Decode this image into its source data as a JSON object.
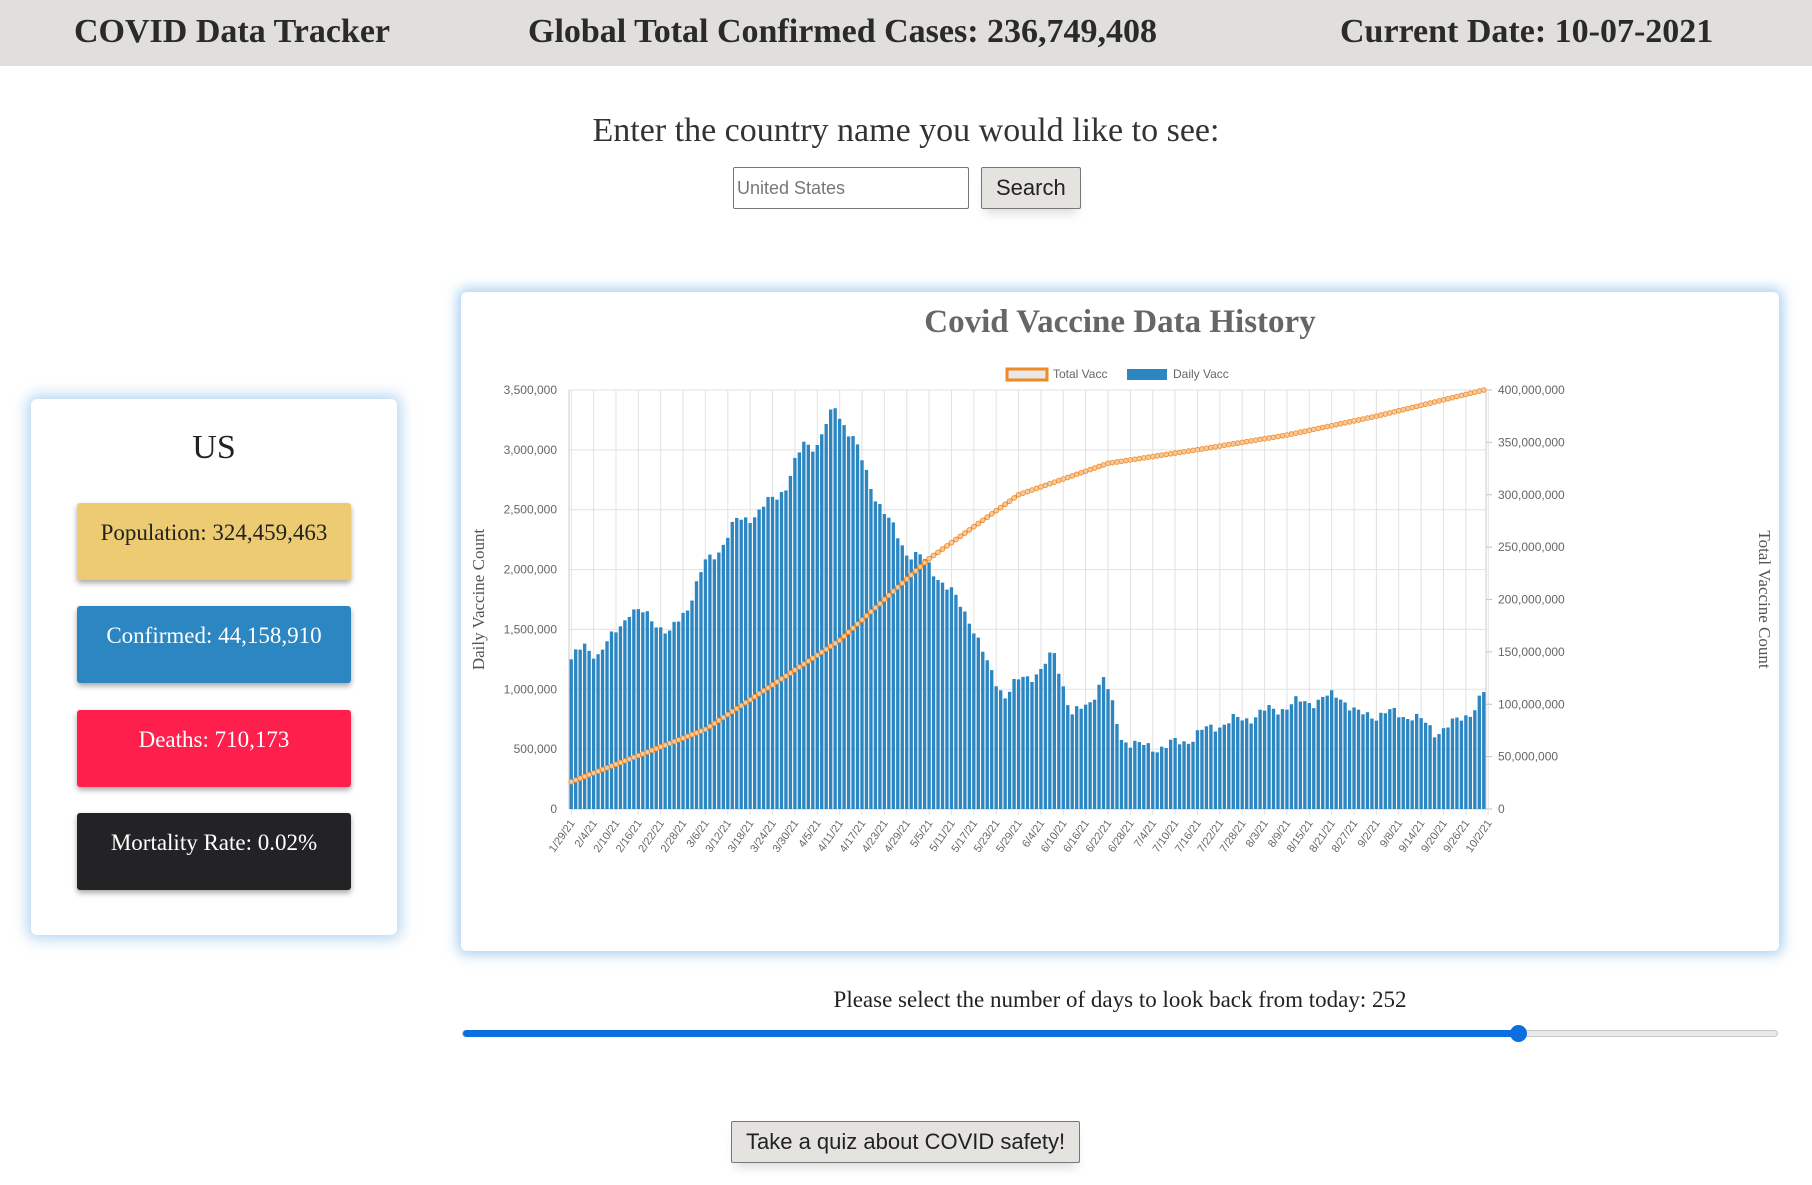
{
  "header": {
    "app_title": "COVID Data Tracker",
    "global_cases": "Global Total Confirmed Cases: 236,749,408",
    "current_date": "Current Date: 10-07-2021"
  },
  "search": {
    "prompt": "Enter the country name you would like to see:",
    "placeholder": "United States",
    "button_label": "Search"
  },
  "country": {
    "name": "US",
    "population": "Population: 324,459,463",
    "confirmed": "Confirmed: 44,158,910",
    "deaths": "Deaths: 710,173",
    "mortality": "Mortality Rate: 0.02%"
  },
  "colors": {
    "population": "#eccb72",
    "confirmed": "#2c86c2",
    "deaths": "#ff1f4c",
    "mortality": "#232225",
    "bar": "#2c86c2",
    "line": "#f08a24",
    "slider": "#0b6fe0"
  },
  "slider": {
    "label": "Please select the number of days to look back from today: 252",
    "value": 252,
    "fraction": 0.803
  },
  "quiz": {
    "button_label": "Take a quiz about COVID safety!"
  },
  "chart_data": {
    "type": "bar",
    "title": "Covid Vaccine Data History",
    "ylabel": "Daily Vaccine Count",
    "y2label": "Total Vaccine Count",
    "legend": [
      "Total Vacc",
      "Daily Vacc"
    ],
    "legend_position": "top",
    "grid": true,
    "ylim": [
      0,
      3500000
    ],
    "y2lim": [
      0,
      400000000
    ],
    "yticks": [
      "3,500,000",
      "3,000,000",
      "2,500,000",
      "2,000,000",
      "1,500,000",
      "1,000,000",
      "500,000",
      "0"
    ],
    "y2ticks": [
      "400,000,000",
      "350,000,000",
      "300,000,000",
      "250,000,000",
      "200,000,000",
      "150,000,000",
      "100,000,000",
      "50,000,000",
      "0"
    ],
    "xticks": [
      "1/29/21",
      "2/4/21",
      "2/10/21",
      "2/16/21",
      "2/22/21",
      "2/28/21",
      "3/6/21",
      "3/12/21",
      "3/18/21",
      "3/24/21",
      "3/30/21",
      "4/5/21",
      "4/11/21",
      "4/17/21",
      "4/23/21",
      "4/29/21",
      "5/5/21",
      "5/11/21",
      "5/17/21",
      "5/23/21",
      "5/29/21",
      "6/4/21",
      "6/10/21",
      "6/16/21",
      "6/22/21",
      "6/28/21",
      "7/4/21",
      "7/10/21",
      "7/16/21",
      "7/22/21",
      "7/28/21",
      "8/3/21",
      "8/9/21",
      "8/15/21",
      "8/21/21",
      "8/27/21",
      "9/2/21",
      "9/8/21",
      "9/14/21",
      "9/20/21",
      "9/26/21",
      "10/2/21"
    ],
    "start_date": "1/29/21",
    "daily_keypoints": [
      [
        0,
        1250000
      ],
      [
        3,
        1350000
      ],
      [
        6,
        1300000
      ],
      [
        9,
        1420000
      ],
      [
        13,
        1660000
      ],
      [
        18,
        1600000
      ],
      [
        22,
        1450000
      ],
      [
        26,
        1700000
      ],
      [
        30,
        2050000
      ],
      [
        33,
        2170000
      ],
      [
        37,
        2400000
      ],
      [
        42,
        2480000
      ],
      [
        48,
        2700000
      ],
      [
        52,
        3050000
      ],
      [
        55,
        3050000
      ],
      [
        59,
        3350000
      ],
      [
        63,
        3100000
      ],
      [
        67,
        2700000
      ],
      [
        71,
        2400000
      ],
      [
        75,
        2150000
      ],
      [
        78,
        2100000
      ],
      [
        82,
        1950000
      ],
      [
        85,
        1800000
      ],
      [
        89,
        1600000
      ],
      [
        93,
        1200000
      ],
      [
        97,
        950000
      ],
      [
        101,
        1100000
      ],
      [
        105,
        1150000
      ],
      [
        108,
        1300000
      ],
      [
        112,
        780000
      ],
      [
        115,
        850000
      ],
      [
        119,
        1100000
      ],
      [
        123,
        600000
      ],
      [
        127,
        520000
      ],
      [
        133,
        520000
      ],
      [
        139,
        600000
      ],
      [
        144,
        700000
      ],
      [
        150,
        750000
      ],
      [
        156,
        820000
      ],
      [
        162,
        880000
      ],
      [
        168,
        920000
      ],
      [
        172,
        950000
      ],
      [
        176,
        780000
      ],
      [
        182,
        800000
      ],
      [
        188,
        780000
      ],
      [
        193,
        650000
      ],
      [
        197,
        700000
      ],
      [
        202,
        850000
      ],
      [
        204,
        960000
      ]
    ],
    "total_keypoints": [
      [
        0,
        26000000
      ],
      [
        30,
        76000000
      ],
      [
        60,
        161000000
      ],
      [
        80,
        239000000
      ],
      [
        100,
        300000000
      ],
      [
        120,
        330000000
      ],
      [
        140,
        343000000
      ],
      [
        160,
        357000000
      ],
      [
        180,
        375000000
      ],
      [
        204,
        400000000
      ]
    ]
  }
}
